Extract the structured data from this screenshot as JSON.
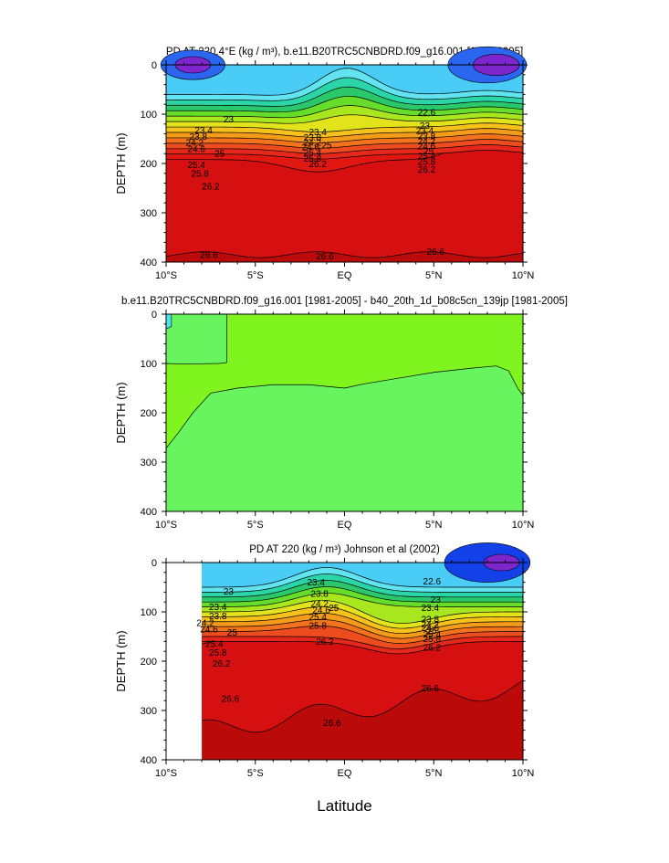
{
  "figure": {
    "xlabel": "Latitude"
  },
  "colors": {
    "levels": [
      "#7d26cd",
      "#3b2fd2",
      "#1241e8",
      "#2a66f0",
      "#2f8cf2",
      "#37aef5",
      "#49cdf7",
      "#62e3f0",
      "#2ad6a8",
      "#2ac86a",
      "#66dd2a",
      "#a8e61e",
      "#e2e31a",
      "#f5c11a",
      "#f59b1a",
      "#f2731c",
      "#ec4c1e",
      "#e6271c",
      "#e11712",
      "#d61010",
      "#c90d0d",
      "#ba0a0a"
    ],
    "diff_light": "#68f45f",
    "diff_green": "#7ff41f",
    "diff_cyan": "#4ce2e8"
  },
  "chart_data": [
    {
      "type": "contour",
      "title": "PD AT 220.4°E (kg / m³), b.e11.B20TRC5CNBDRD.f09_g16.001 [1981-2005]",
      "ylabel": "DEPTH (m)",
      "xlim": [
        -10,
        10
      ],
      "ylim": [
        400,
        0
      ],
      "xticks": [
        "10°S",
        "5°S",
        "EQ",
        "5°N",
        "10°N"
      ],
      "yticks": [
        "0",
        "100",
        "200",
        "300",
        "400"
      ],
      "contour_levels": [
        21.4,
        21.8,
        22.2,
        22.6,
        23,
        23.4,
        23.8,
        24.2,
        24.6,
        25,
        25.4,
        25.8,
        26.2,
        26.6
      ],
      "labels": [
        {
          "text": "23",
          "x": -6.5,
          "y": 110
        },
        {
          "text": "23.4",
          "x": -7.9,
          "y": 132
        },
        {
          "text": "23.8",
          "x": -8.2,
          "y": 145
        },
        {
          "text": "24.2",
          "x": -8.4,
          "y": 157
        },
        {
          "text": "24.6",
          "x": -8.3,
          "y": 170
        },
        {
          "text": "25",
          "x": -7.0,
          "y": 180
        },
        {
          "text": "25.4",
          "x": -8.3,
          "y": 203
        },
        {
          "text": "25.8",
          "x": -8.1,
          "y": 220
        },
        {
          "text": "26.2",
          "x": -7.5,
          "y": 246
        },
        {
          "text": "26.6",
          "x": -7.6,
          "y": 385
        },
        {
          "text": "23.4",
          "x": -1.5,
          "y": 136
        },
        {
          "text": "23.8",
          "x": -1.8,
          "y": 147
        },
        {
          "text": "24.2",
          "x": -1.8,
          "y": 157
        },
        {
          "text": "24.6",
          "x": -1.9,
          "y": 167
        },
        {
          "text": "25",
          "x": -1.0,
          "y": 163
        },
        {
          "text": "25.4",
          "x": -1.8,
          "y": 178
        },
        {
          "text": "25.8",
          "x": -1.8,
          "y": 190
        },
        {
          "text": "26.2",
          "x": -1.5,
          "y": 201
        },
        {
          "text": "26.6",
          "x": -1.1,
          "y": 388
        },
        {
          "text": "22.6",
          "x": 4.6,
          "y": 96
        },
        {
          "text": "23",
          "x": 4.5,
          "y": 123
        },
        {
          "text": "23.4",
          "x": 4.5,
          "y": 133
        },
        {
          "text": "23.8",
          "x": 4.6,
          "y": 144
        },
        {
          "text": "24.2",
          "x": 4.6,
          "y": 155
        },
        {
          "text": "24.6",
          "x": 4.6,
          "y": 165
        },
        {
          "text": "25",
          "x": 4.7,
          "y": 175
        },
        {
          "text": "25.4",
          "x": 4.6,
          "y": 185
        },
        {
          "text": "25.8",
          "x": 4.6,
          "y": 196
        },
        {
          "text": "26.2",
          "x": 4.6,
          "y": 212
        },
        {
          "text": "26.6",
          "x": 5.1,
          "y": 379
        }
      ]
    },
    {
      "type": "contour",
      "title": "b.e11.B20TRC5CNBDRD.f09_g16.001 [1981-2005] - b40_20th_1d_b08c5cn_139jp [1981-2005]",
      "ylabel": "DEPTH (m)",
      "xlim": [
        -10,
        10
      ],
      "ylim": [
        400,
        0
      ],
      "xticks": [
        "10°S",
        "5°S",
        "EQ",
        "5°N",
        "10°N"
      ],
      "yticks": [
        "0",
        "100",
        "200",
        "300",
        "400"
      ]
    },
    {
      "type": "contour",
      "title": "PD AT 220 (kg / m³) Johnson et al (2002)",
      "ylabel": "DEPTH (m)",
      "xlim": [
        -10,
        10
      ],
      "ylim": [
        400,
        0
      ],
      "data_xlim": [
        -8,
        10
      ],
      "xticks": [
        "10°S",
        "5°S",
        "EQ",
        "5°N",
        "10°N"
      ],
      "yticks": [
        "0",
        "100",
        "200",
        "300",
        "400"
      ],
      "contour_levels": [
        21.4,
        21.8,
        22.2,
        22.6,
        23,
        23.4,
        23.8,
        24.2,
        24.6,
        25,
        25.4,
        25.8,
        26.2,
        26.6
      ],
      "labels": [
        {
          "text": "23",
          "x": -6.5,
          "y": 58
        },
        {
          "text": "23.4",
          "x": -7.1,
          "y": 90
        },
        {
          "text": "23.8",
          "x": -7.1,
          "y": 108
        },
        {
          "text": "24.2",
          "x": -7.8,
          "y": 122
        },
        {
          "text": "24.6",
          "x": -7.6,
          "y": 135
        },
        {
          "text": "25",
          "x": -6.3,
          "y": 142
        },
        {
          "text": "25.4",
          "x": -7.3,
          "y": 165
        },
        {
          "text": "25.8",
          "x": -7.1,
          "y": 182
        },
        {
          "text": "26.2",
          "x": -6.9,
          "y": 205
        },
        {
          "text": "26.6",
          "x": -6.4,
          "y": 276
        },
        {
          "text": "26.6",
          "x": -0.7,
          "y": 325
        },
        {
          "text": "23.4",
          "x": -1.6,
          "y": 40
        },
        {
          "text": "23.8",
          "x": -1.4,
          "y": 63
        },
        {
          "text": "24.2",
          "x": -1.4,
          "y": 83
        },
        {
          "text": "24.6",
          "x": -1.3,
          "y": 96
        },
        {
          "text": "25",
          "x": -0.6,
          "y": 92
        },
        {
          "text": "25.4",
          "x": -1.5,
          "y": 110
        },
        {
          "text": "25.8",
          "x": -1.5,
          "y": 128
        },
        {
          "text": "26.2",
          "x": -1.1,
          "y": 160
        },
        {
          "text": "22.6",
          "x": 4.9,
          "y": 38
        },
        {
          "text": "23",
          "x": 5.1,
          "y": 75
        },
        {
          "text": "23.4",
          "x": 4.8,
          "y": 92
        },
        {
          "text": "23.8",
          "x": 4.8,
          "y": 115
        },
        {
          "text": "24.2",
          "x": 4.8,
          "y": 125
        },
        {
          "text": "24.6",
          "x": 4.8,
          "y": 132
        },
        {
          "text": "25",
          "x": 4.9,
          "y": 138
        },
        {
          "text": "25.4",
          "x": 4.9,
          "y": 145
        },
        {
          "text": "25.8",
          "x": 4.9,
          "y": 155
        },
        {
          "text": "26.2",
          "x": 4.9,
          "y": 172
        },
        {
          "text": "26.6",
          "x": 4.8,
          "y": 255
        }
      ]
    }
  ]
}
